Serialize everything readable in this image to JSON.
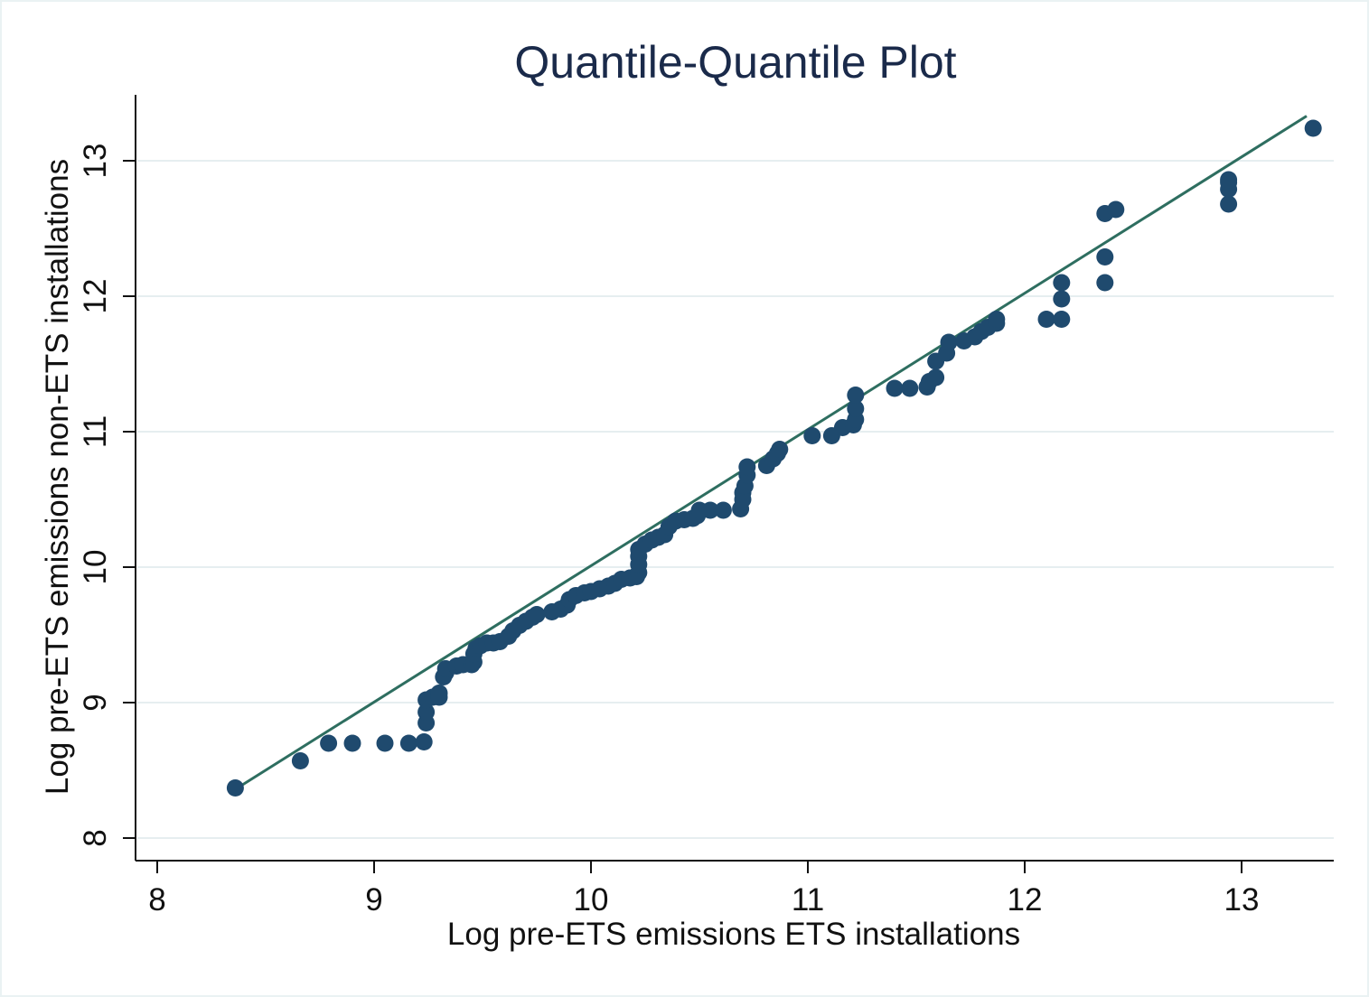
{
  "chart_data": {
    "type": "scatter",
    "title": "Quantile-Quantile Plot",
    "xlabel": "Log pre-ETS emissions ETS installations",
    "ylabel": "Log pre-ETS emissions non-ETS installations",
    "xlim": [
      8,
      13.4
    ],
    "ylim": [
      8,
      13.5
    ],
    "x_ticks": [
      "8",
      "9",
      "10",
      "11",
      "12",
      "13"
    ],
    "y_ticks": [
      "8",
      "9",
      "10",
      "11",
      "12",
      "13"
    ],
    "grid": "horizontal",
    "colors": {
      "points": "#1f4a6e",
      "line": "#2e6e60",
      "grid": "#e6eef0",
      "axis": "#111111"
    },
    "reference_line": {
      "x": [
        8.36,
        13.3
      ],
      "y": [
        8.36,
        13.33
      ]
    },
    "series": [
      {
        "points": [
          [
            8.36,
            8.37
          ],
          [
            8.66,
            8.57
          ],
          [
            8.79,
            8.7
          ],
          [
            8.9,
            8.7
          ],
          [
            9.05,
            8.7
          ],
          [
            9.16,
            8.7
          ],
          [
            9.23,
            8.71
          ],
          [
            9.24,
            8.85
          ],
          [
            9.24,
            8.93
          ],
          [
            9.24,
            9.02
          ],
          [
            9.27,
            9.04
          ],
          [
            9.3,
            9.04
          ],
          [
            9.3,
            9.07
          ],
          [
            9.32,
            9.19
          ],
          [
            9.33,
            9.22
          ],
          [
            9.33,
            9.25
          ],
          [
            9.38,
            9.27
          ],
          [
            9.41,
            9.28
          ],
          [
            9.45,
            9.28
          ],
          [
            9.46,
            9.3
          ],
          [
            9.46,
            9.36
          ],
          [
            9.47,
            9.4
          ],
          [
            9.49,
            9.42
          ],
          [
            9.52,
            9.44
          ],
          [
            9.55,
            9.44
          ],
          [
            9.58,
            9.45
          ],
          [
            9.62,
            9.49
          ],
          [
            9.64,
            9.53
          ],
          [
            9.67,
            9.57
          ],
          [
            9.7,
            9.6
          ],
          [
            9.73,
            9.63
          ],
          [
            9.75,
            9.65
          ],
          [
            9.82,
            9.67
          ],
          [
            9.86,
            9.69
          ],
          [
            9.89,
            9.72
          ],
          [
            9.9,
            9.76
          ],
          [
            9.93,
            9.79
          ],
          [
            9.97,
            9.81
          ],
          [
            10.0,
            9.82
          ],
          [
            10.04,
            9.84
          ],
          [
            10.08,
            9.86
          ],
          [
            10.11,
            9.88
          ],
          [
            10.14,
            9.91
          ],
          [
            10.18,
            9.92
          ],
          [
            10.21,
            9.93
          ],
          [
            10.22,
            9.96
          ],
          [
            10.22,
            10.02
          ],
          [
            10.22,
            10.08
          ],
          [
            10.22,
            10.13
          ],
          [
            10.25,
            10.17
          ],
          [
            10.28,
            10.2
          ],
          [
            10.31,
            10.22
          ],
          [
            10.34,
            10.24
          ],
          [
            10.36,
            10.3
          ],
          [
            10.39,
            10.34
          ],
          [
            10.43,
            10.35
          ],
          [
            10.47,
            10.36
          ],
          [
            10.49,
            10.38
          ],
          [
            10.5,
            10.42
          ],
          [
            10.55,
            10.42
          ],
          [
            10.61,
            10.42
          ],
          [
            10.69,
            10.43
          ],
          [
            10.7,
            10.5
          ],
          [
            10.7,
            10.55
          ],
          [
            10.71,
            10.6
          ],
          [
            10.72,
            10.68
          ],
          [
            10.72,
            10.74
          ],
          [
            10.81,
            10.75
          ],
          [
            10.84,
            10.8
          ],
          [
            10.86,
            10.84
          ],
          [
            10.87,
            10.87
          ],
          [
            11.02,
            10.97
          ],
          [
            11.11,
            10.97
          ],
          [
            11.16,
            11.03
          ],
          [
            11.21,
            11.05
          ],
          [
            11.22,
            11.09
          ],
          [
            11.22,
            11.17
          ],
          [
            11.22,
            11.27
          ],
          [
            11.4,
            11.32
          ],
          [
            11.47,
            11.32
          ],
          [
            11.55,
            11.33
          ],
          [
            11.56,
            11.37
          ],
          [
            11.59,
            11.4
          ],
          [
            11.59,
            11.52
          ],
          [
            11.64,
            11.58
          ],
          [
            11.65,
            11.66
          ],
          [
            11.72,
            11.67
          ],
          [
            11.77,
            11.7
          ],
          [
            11.8,
            11.74
          ],
          [
            11.83,
            11.77
          ],
          [
            11.87,
            11.8
          ],
          [
            11.87,
            11.83
          ],
          [
            12.1,
            11.83
          ],
          [
            12.17,
            11.83
          ],
          [
            12.17,
            11.98
          ],
          [
            12.17,
            12.1
          ],
          [
            12.37,
            12.1
          ],
          [
            12.37,
            12.29
          ],
          [
            12.37,
            12.61
          ],
          [
            12.42,
            12.64
          ],
          [
            12.94,
            12.68
          ],
          [
            12.94,
            12.79
          ],
          [
            12.94,
            12.84
          ],
          [
            12.94,
            12.86
          ],
          [
            13.33,
            13.24
          ]
        ]
      }
    ]
  }
}
